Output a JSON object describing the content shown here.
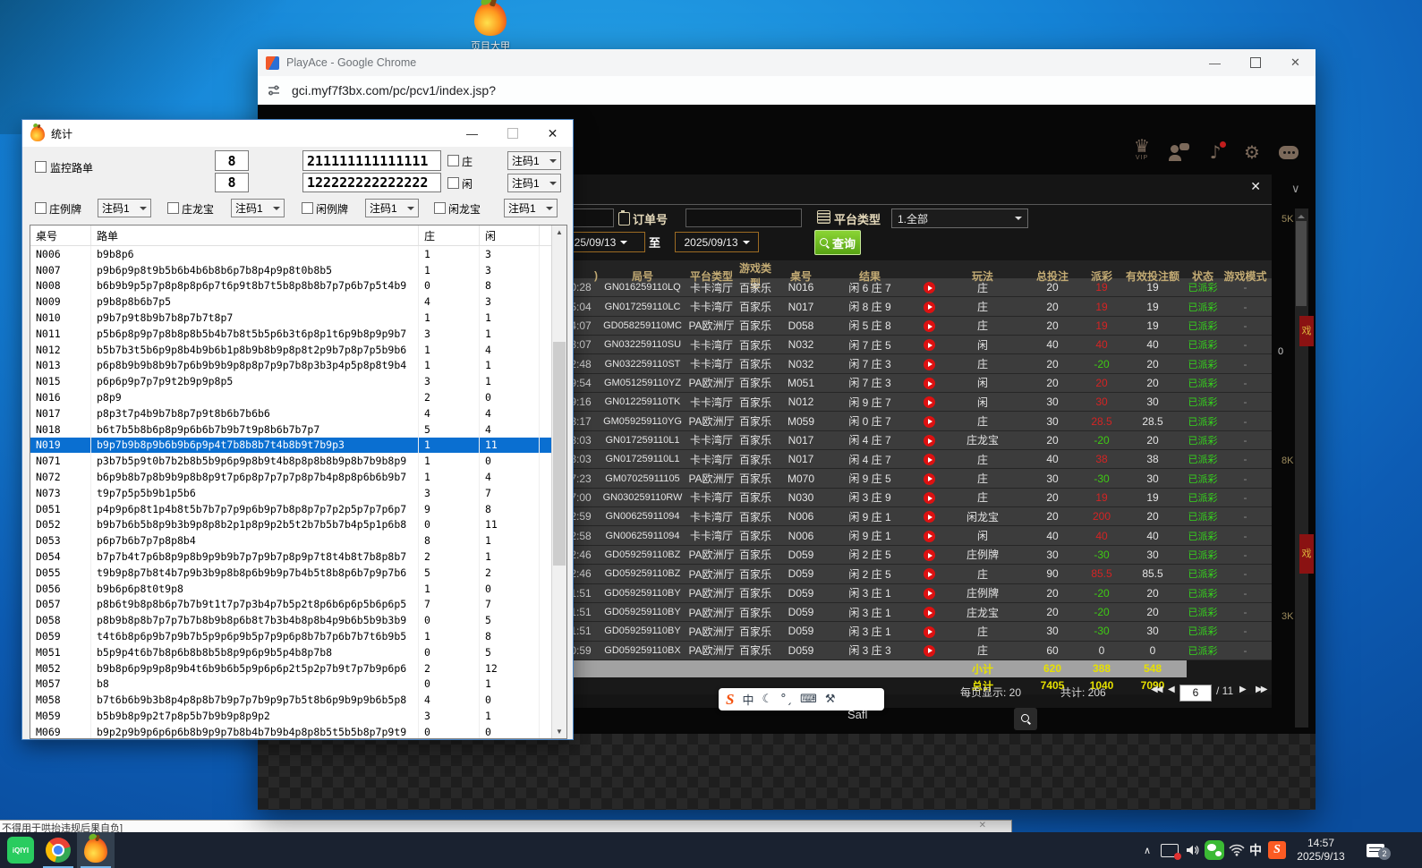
{
  "desktop": {
    "icon_label": "页目大甲",
    "marquee_window": {
      "text": "不得用于哄抬违规后果自负]",
      "close_glyph": "✕"
    }
  },
  "taskbar": {
    "iqiyi_label": "iQIYI",
    "ime": "中",
    "clock_time": "14:57",
    "clock_date": "2025/9/13",
    "notif_badge": "2",
    "chevron": "∧"
  },
  "chrome": {
    "window_title": "PlayAce - Google Chrome",
    "url": "gci.myf7f3bx.com/pc/pcv1/index.jsp?",
    "min_glyph": "—",
    "close_glyph": "✕"
  },
  "app": {
    "vip_label": "VIP",
    "crown_glyph": "♛",
    "music_glyph": "♪",
    "gear_glyph": "⚙",
    "side": {
      "k_top": "5K",
      "k_mid": "8K",
      "k_low": "3K",
      "zero": "0",
      "badge_char": "戏",
      "safl": "Safl",
      "chevron": "∨"
    },
    "sogou": {
      "s": "S",
      "ime": "中",
      "moon": "☾",
      "marks": "°ˏ",
      "keyboard": "⌨",
      "tool": "⚒"
    },
    "dialog": {
      "close_glyph": "✕",
      "order_label": "订单号",
      "platform_label": "平台类型",
      "platform_value": "1.全部",
      "date_from": "25/09/13",
      "to_label": "至",
      "date_to": "2025/09/13",
      "search_label": "查询",
      "table": {
        "headers": [
          ")",
          "局号",
          "平台类型",
          "游戏类型",
          "桌号",
          "结果",
          "",
          "玩法",
          "总投注",
          "派彩",
          "有效投注额",
          "状态",
          "游戏模式"
        ],
        "status_label": "已派彩",
        "mode_label": "-",
        "rows": [
          [
            "0:28",
            "GN016259110LQ",
            "卡卡湾厅",
            "百家乐",
            "N016",
            "闲 6 庄 7",
            "庄",
            "20",
            "19",
            "19"
          ],
          [
            "5:04",
            "GN017259110LC",
            "卡卡湾厅",
            "百家乐",
            "N017",
            "闲 8 庄 9",
            "庄",
            "20",
            "19",
            "19"
          ],
          [
            "4:07",
            "GD058259110MC",
            "PA欧洲厅",
            "百家乐",
            "D058",
            "闲 5 庄 8",
            "庄",
            "20",
            "19",
            "19"
          ],
          [
            "3:07",
            "GN032259110SU",
            "卡卡湾厅",
            "百家乐",
            "N032",
            "闲 7 庄 5",
            "闲",
            "40",
            "40",
            "40"
          ],
          [
            "2:48",
            "GN032259110ST",
            "卡卡湾厅",
            "百家乐",
            "N032",
            "闲 7 庄 3",
            "庄",
            "20",
            "-20",
            "20"
          ],
          [
            "9:54",
            "GM051259110YZ",
            "PA欧洲厅",
            "百家乐",
            "M051",
            "闲 7 庄 3",
            "闲",
            "20",
            "20",
            "20"
          ],
          [
            "9:16",
            "GN012259110TK",
            "卡卡湾厅",
            "百家乐",
            "N012",
            "闲 9 庄 7",
            "闲",
            "30",
            "30",
            "30"
          ],
          [
            "3:17",
            "GM059259110YG",
            "PA欧洲厅",
            "百家乐",
            "M059",
            "闲 0 庄 7",
            "庄",
            "30",
            "28.5",
            "28.5"
          ],
          [
            "3:03",
            "GN017259110L1",
            "卡卡湾厅",
            "百家乐",
            "N017",
            "闲 4 庄 7",
            "庄龙宝",
            "20",
            "-20",
            "20"
          ],
          [
            "3:03",
            "GN017259110L1",
            "卡卡湾厅",
            "百家乐",
            "N017",
            "闲 4 庄 7",
            "庄",
            "40",
            "38",
            "38"
          ],
          [
            "7:23",
            "GM07025911105",
            "PA欧洲厅",
            "百家乐",
            "M070",
            "闲 9 庄 5",
            "庄",
            "30",
            "-30",
            "30"
          ],
          [
            "7:00",
            "GN030259110RW",
            "卡卡湾厅",
            "百家乐",
            "N030",
            "闲 3 庄 9",
            "庄",
            "20",
            "19",
            "19"
          ],
          [
            "2:59",
            "GN00625911094",
            "卡卡湾厅",
            "百家乐",
            "N006",
            "闲 9 庄 1",
            "闲龙宝",
            "20",
            "200",
            "20"
          ],
          [
            "2:58",
            "GN00625911094",
            "卡卡湾厅",
            "百家乐",
            "N006",
            "闲 9 庄 1",
            "闲",
            "40",
            "40",
            "40"
          ],
          [
            "2:46",
            "GD059259110BZ",
            "PA欧洲厅",
            "百家乐",
            "D059",
            "闲 2 庄 5",
            "庄例牌",
            "30",
            "-30",
            "30"
          ],
          [
            "2:46",
            "GD059259110BZ",
            "PA欧洲厅",
            "百家乐",
            "D059",
            "闲 2 庄 5",
            "庄",
            "90",
            "85.5",
            "85.5"
          ],
          [
            "1:51",
            "GD059259110BY",
            "PA欧洲厅",
            "百家乐",
            "D059",
            "闲 3 庄 1",
            "庄例牌",
            "20",
            "-20",
            "20"
          ],
          [
            "1:51",
            "GD059259110BY",
            "PA欧洲厅",
            "百家乐",
            "D059",
            "闲 3 庄 1",
            "庄龙宝",
            "20",
            "-20",
            "20"
          ],
          [
            "1:51",
            "GD059259110BY",
            "PA欧洲厅",
            "百家乐",
            "D059",
            "闲 3 庄 1",
            "庄",
            "30",
            "-30",
            "30"
          ],
          [
            "0:59",
            "GD059259110BX",
            "PA欧洲厅",
            "百家乐",
            "D059",
            "闲 3 庄 3",
            "庄",
            "60",
            "0",
            "0"
          ]
        ],
        "subtotal": {
          "label": "小计",
          "bet": "620",
          "pay": "388",
          "valid": "548"
        },
        "total": {
          "label": "总计",
          "bet": "7405",
          "pay": "1040",
          "valid": "7090"
        }
      },
      "pagination": {
        "per_page": "每页显示: 20",
        "count": "共计: 206",
        "first": "◀◀",
        "prev": "◀",
        "page": "6",
        "of": "/ 11",
        "next": "▶",
        "last": "▶▶"
      }
    }
  },
  "stats": {
    "title": "统计",
    "min_glyph": "—",
    "close_glyph": "✕",
    "monitor_label": "监控路单",
    "num1": "8",
    "num2": "8",
    "code1": "211111111111111",
    "code2": "122222222222222",
    "banker_label": "庄",
    "player_label": "闲",
    "combo_value": "注码1",
    "label_zhuang_lipai": "庄例牌",
    "label_zhuang_longbao": "庄龙宝",
    "label_xian_lipai": "闲例牌",
    "label_xian_longbao": "闲龙宝",
    "table": {
      "headers": [
        "桌号",
        "路单",
        "庄",
        "闲"
      ],
      "selected": 12,
      "rows": [
        [
          "N006",
          "b9b8p6",
          "1",
          "3"
        ],
        [
          "N007",
          "p9b6p9p8t9b5b6b4b6b8b6p7b8p4p9p8t0b8b5",
          "1",
          "3"
        ],
        [
          "N008",
          "b6b9b9p5p7p8p8p8p6p7t6p9t8b7t5b8p8b8b7p7p6b7p5t4b9",
          "0",
          "8"
        ],
        [
          "N009",
          "p9b8p8b6b7p5",
          "4",
          "3"
        ],
        [
          "N010",
          "p9b7p9t8b9b7b8p7b7t8p7",
          "1",
          "1"
        ],
        [
          "N011",
          "p5b6p8p9p7p8b8p8b5b4b7b8t5b5p6b3t6p8p1t6p9b8p9p9b7",
          "3",
          "1"
        ],
        [
          "N012",
          "b5b7b3t5b6p9p8b4b9b6b1p8b9b8b9p8p8t2p9b7p8p7p5b9b6",
          "1",
          "4"
        ],
        [
          "N013",
          "p6p8b9b9b8b9b7p6b9b9b9p8p8p7p9p7b8p3b3p4p5p8p8t9b4",
          "1",
          "1"
        ],
        [
          "N015",
          "p6p6p9p7p7p9t2b9p9p8p5",
          "3",
          "1"
        ],
        [
          "N016",
          "p8p9",
          "2",
          "0"
        ],
        [
          "N017",
          "p8p3t7p4b9b7b8p7p9t8b6b7b6b6",
          "4",
          "4"
        ],
        [
          "N018",
          "b6t7b5b8b6p8p9p6b6b7b9b7t9p8b6b7b7p7",
          "5",
          "4"
        ],
        [
          "N019",
          "b9p7b9b8p9b6b9b6p9p4t7b8b8b7t4b8b9t7b9p3",
          "1",
          "11"
        ],
        [
          "N071",
          "p3b7b5p9t0b7b2b8b5b9p6p9p8b9t4b8p8p8b8b9p8b7b9b8p9",
          "1",
          "0"
        ],
        [
          "N072",
          "b6p9b8b7p8b9b9p8b8p9t7p6p8p7p7p7p8p7b4p8p8p6b6b9b7",
          "1",
          "4"
        ],
        [
          "N073",
          "t9p7p5p5b9b1p5b6",
          "3",
          "7"
        ],
        [
          "D051",
          "p4p9p6p8t1p4b8t5b7b7p7p9p6b9p7b8p8p7p7p2p5p7p7p6p7",
          "9",
          "8"
        ],
        [
          "D052",
          "b9b7b6b5b8p9b3b9p8p8b2p1p8p9p2b5t2b7b5b7b4p5p1p6b8",
          "0",
          "11"
        ],
        [
          "D053",
          "p6p7b6b7p7p8p8b4",
          "8",
          "1"
        ],
        [
          "D054",
          "b7p7b4t7p6b8p9p8b9p9b9b7p7p9b7p8p9p7t8t4b8t7b8p8b7",
          "2",
          "1"
        ],
        [
          "D055",
          "t9b9p8p7b8t4b7p9b3b9p8b8p6b9b9p7b4b5t8b8p6b7p9p7b6",
          "5",
          "2"
        ],
        [
          "D056",
          "b9b6p6p8t0t9p8",
          "1",
          "0"
        ],
        [
          "D057",
          "p8b6t9b8p8b6p7b7b9t1t7p7p3b4p7b5p2t8p6b6p6p5b6p6p5",
          "7",
          "7"
        ],
        [
          "D058",
          "p8b9b8p8b7p7p7b7b8b9b8p6b8t7b3b4b8p8b4p9b6b5b9b3b9",
          "0",
          "5"
        ],
        [
          "D059",
          "t4t6b8p6p9b7p9b7b5p9p6p9b5p7p9p6p8b7b7p6b7b7t6b9b5",
          "1",
          "8"
        ],
        [
          "M051",
          "b5p9p4t6b7b8p6b8b8b5b8p9p6p9b5p4b8p7b8",
          "0",
          "5"
        ],
        [
          "M052",
          "b9b8p6p9p9p8p9b4t6b9b6b5p9p6p6p2t5p2p7b9t7p7b9p6p6",
          "2",
          "12"
        ],
        [
          "M057",
          "b8",
          "0",
          "1"
        ],
        [
          "M058",
          "b7t6b6b9b3b8p4p8p8b7b9p7p7b9p9p7b5t8b6p9b9p9b6b5p8",
          "4",
          "0"
        ],
        [
          "M059",
          "b5b9b8p9p2t7p8p5b7b9b9p8p9p2",
          "3",
          "1"
        ],
        [
          "M069",
          "b9p2p9b9p6p6p6b8b9p9p7b8b4b7b9b4p8p8b5t5b5b8p7p9t9",
          "0",
          "0"
        ]
      ]
    }
  }
}
